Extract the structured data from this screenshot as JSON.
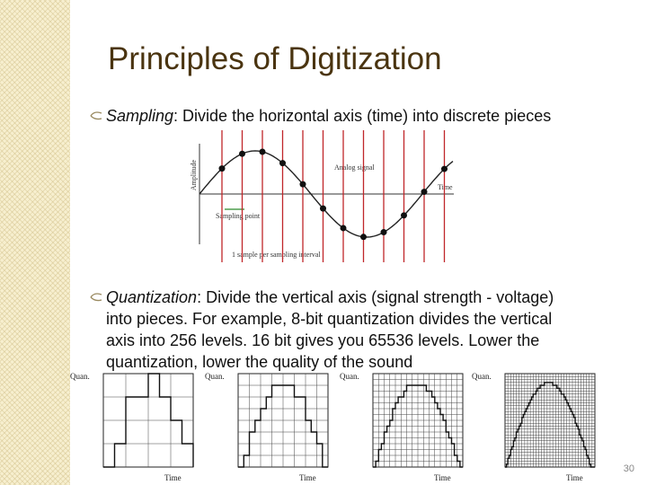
{
  "slide": {
    "title": "Principles of Digitization",
    "page_number": "30"
  },
  "bullets": [
    {
      "term": "Sampling",
      "text": ": Divide the horizontal axis (time) into discrete pieces"
    },
    {
      "term": "Quantization",
      "text": ": Divide the vertical axis (signal strength - voltage) into pieces. For example, 8-bit quantization divides the vertical axis into 256 levels. 16 bit gives you 65536 levels. Lower the quantization, lower the quality of the sound"
    }
  ],
  "sampling_figure": {
    "y_label": "Amplitude",
    "signal_label": "Analog signal",
    "x_label": "Time",
    "point_label": "Sampling point",
    "caption": "1 sample per sampling interval"
  },
  "quantization_figures": [
    {
      "y_label": "Quan.",
      "x_label": "Time"
    },
    {
      "y_label": "Quan.",
      "x_label": "Time"
    },
    {
      "y_label": "Quan.",
      "x_label": "Time"
    },
    {
      "y_label": "Quan.",
      "x_label": "Time"
    }
  ]
}
